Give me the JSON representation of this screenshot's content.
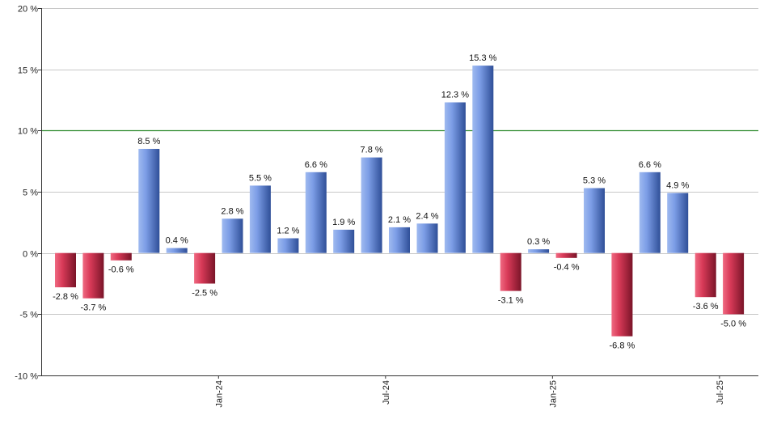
{
  "chart_data": {
    "type": "bar",
    "title": "",
    "xlabel": "",
    "ylabel": "",
    "ylim": [
      -10,
      20
    ],
    "yticks": [
      -10,
      -5,
      0,
      5,
      10,
      15,
      20
    ],
    "ytick_labels": [
      "-10 %",
      "-5 %",
      "0 %",
      "5 %",
      "10 %",
      "15 %",
      "20 %"
    ],
    "reference_line": 10,
    "values": [
      -2.8,
      -3.7,
      -0.6,
      8.5,
      0.4,
      -2.5,
      2.8,
      5.5,
      1.2,
      6.6,
      1.9,
      7.8,
      2.1,
      2.4,
      12.3,
      15.3,
      -3.1,
      0.3,
      -0.4,
      5.3,
      -6.8,
      6.6,
      4.9,
      -3.6,
      -5.0
    ],
    "data_labels": [
      "-2.8 %",
      "-3.7 %",
      "-0.6 %",
      "8.5 %",
      "0.4 %",
      "-2.5 %",
      "2.8 %",
      "5.5 %",
      "1.2 %",
      "6.6 %",
      "1.9 %",
      "7.8 %",
      "2.1 %",
      "2.4 %",
      "12.3 %",
      "15.3 %",
      "-3.1 %",
      "0.3 %",
      "-0.4 %",
      "5.3 %",
      "-6.8 %",
      "6.6 %",
      "4.9 %",
      "-3.6 %",
      "-5.0 %"
    ],
    "x_tick_labels": [
      {
        "label": "Jan-24",
        "index": 5.5
      },
      {
        "label": "Jul-24",
        "index": 11.5
      },
      {
        "label": "Jan-25",
        "index": 17.5
      },
      {
        "label": "Jul-25",
        "index": 23.5
      }
    ],
    "grid": true,
    "colors": {
      "positive": "#6f93dc",
      "negative": "#c8304e",
      "reference_line": "#2e8b2e",
      "grid": "#c8c8c8",
      "axis": "#333333"
    }
  }
}
